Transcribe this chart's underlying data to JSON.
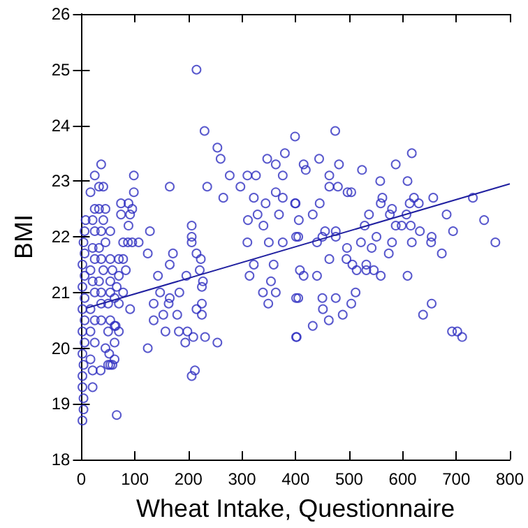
{
  "chart_data": {
    "type": "scatter",
    "xlabel": "Wheat Intake, Questionnaire",
    "ylabel": "BMI",
    "xlim": [
      0,
      800
    ],
    "xticks": [
      0,
      100,
      200,
      300,
      400,
      500,
      600,
      700,
      800
    ],
    "ylim": [
      18,
      26
    ],
    "yticks": [
      18,
      19,
      20,
      21,
      22,
      23,
      24,
      25,
      26
    ],
    "grid": false,
    "marker": "circle",
    "series": [
      {
        "color": "#3030c0",
        "x": [
          215,
          230,
          254,
          260,
          277,
          37,
          98,
          165,
          235,
          265,
          297,
          310,
          326,
          347,
          363,
          376,
          380,
          399,
          322,
          344,
          363,
          376,
          399,
          311,
          329,
          340,
          369,
          310,
          350,
          376,
          401,
          359,
          314,
          322,
          354,
          339,
          363,
          349,
          401,
          401,
          206,
          206,
          206,
          128,
          124,
          171,
          165,
          143,
          215,
          223,
          221,
          227,
          225,
          196,
          183,
          147,
          165,
          135,
          163,
          153,
          179,
          135,
          215,
          225,
          225,
          157,
          182,
          198,
          209,
          194,
          231,
          254,
          124,
          212,
          206,
          66,
          91,
          91,
          95,
          98,
          88,
          74,
          107,
          95,
          88,
          2,
          4,
          4,
          2,
          2,
          4,
          2,
          6,
          2,
          6,
          2,
          6,
          2,
          6,
          2,
          6,
          4,
          6,
          8,
          21,
          21,
          17,
          25,
          17,
          25,
          17,
          25,
          21,
          17,
          25,
          21,
          25,
          21,
          25,
          17,
          25,
          33,
          41,
          36,
          50,
          62,
          52,
          45,
          62,
          50,
          62,
          37,
          54,
          37,
          50,
          62,
          37,
          54,
          66,
          33,
          54,
          41,
          58,
          37,
          54,
          70,
          33,
          45,
          54,
          37,
          41,
          33,
          45,
          78,
          83,
          70,
          78,
          70,
          64,
          70,
          54,
          74,
          87,
          78,
          58,
          474,
          617,
          444,
          415,
          419,
          481,
          524,
          587,
          463,
          463,
          479,
          497,
          504,
          558,
          609,
          400,
          445,
          562,
          559,
          580,
          613,
          621,
          630,
          657,
          731,
          406,
          432,
          537,
          576,
          607,
          682,
          752,
          529,
          587,
          598,
          615,
          632,
          694,
          455,
          475,
          405,
          440,
          450,
          475,
          551,
          654,
          522,
          580,
          617,
          653,
          773,
          496,
          542,
          574,
          673,
          463,
          495,
          506,
          532,
          514,
          532,
          546,
          408,
          415,
          440,
          559,
          609,
          512,
          405,
          450,
          475,
          451,
          504,
          488,
          462,
          432,
          402,
          638,
          654,
          692,
          702,
          711
        ],
        "values": [
          25.0,
          23.9,
          23.6,
          23.4,
          23.1,
          23.3,
          23.1,
          22.9,
          22.9,
          22.7,
          22.9,
          23.1,
          23.1,
          23.4,
          23.3,
          23.1,
          23.5,
          23.8,
          22.7,
          22.6,
          22.8,
          22.7,
          22.6,
          22.3,
          22.4,
          22.2,
          22.4,
          21.9,
          21.9,
          21.9,
          22.0,
          21.5,
          21.3,
          21.5,
          21.2,
          21.0,
          21.0,
          20.8,
          20.9,
          20.2,
          22.2,
          22.0,
          21.9,
          22.1,
          21.7,
          21.7,
          21.5,
          21.3,
          21.7,
          21.6,
          21.4,
          21.2,
          21.1,
          21.3,
          21.0,
          21.0,
          20.9,
          20.8,
          20.8,
          20.6,
          20.6,
          20.5,
          20.7,
          20.8,
          20.6,
          20.3,
          20.3,
          20.3,
          20.2,
          20.1,
          20.2,
          20.1,
          20.0,
          19.6,
          19.5,
          18.8,
          20.7,
          22.4,
          22.5,
          22.8,
          22.6,
          22.4,
          21.9,
          21.9,
          22.2,
          18.7,
          18.9,
          19.1,
          19.3,
          19.5,
          19.7,
          19.9,
          20.1,
          20.3,
          20.5,
          20.7,
          20.9,
          21.1,
          21.3,
          21.5,
          21.7,
          21.9,
          22.1,
          22.3,
          19.3,
          19.6,
          19.8,
          20.1,
          20.3,
          20.5,
          20.7,
          21.0,
          21.2,
          21.4,
          21.6,
          21.8,
          22.1,
          22.3,
          22.5,
          22.8,
          23.1,
          22.9,
          22.9,
          19.6,
          19.7,
          19.8,
          19.9,
          20.0,
          20.1,
          20.3,
          20.4,
          20.5,
          20.5,
          20.8,
          20.8,
          20.9,
          21.0,
          21.0,
          21.1,
          21.2,
          21.2,
          21.4,
          21.4,
          21.6,
          21.6,
          21.6,
          21.8,
          21.9,
          22.1,
          22.1,
          22.3,
          22.5,
          22.5,
          21.6,
          21.4,
          21.3,
          21.0,
          20.8,
          20.4,
          20.3,
          19.7,
          22.6,
          21.9,
          21.9,
          19.7,
          23.9,
          23.5,
          23.4,
          23.3,
          23.2,
          23.3,
          23.2,
          23.3,
          23.1,
          22.9,
          22.9,
          22.8,
          22.8,
          23.0,
          23.0,
          22.6,
          22.6,
          22.7,
          22.6,
          22.5,
          22.6,
          22.7,
          22.6,
          22.7,
          22.7,
          22.3,
          22.4,
          22.4,
          22.4,
          22.4,
          22.4,
          22.3,
          22.2,
          22.2,
          22.2,
          22.2,
          22.1,
          22.1,
          22.1,
          22.1,
          22.0,
          21.9,
          22.0,
          22.0,
          22.0,
          22.0,
          21.9,
          21.9,
          21.9,
          21.9,
          21.9,
          21.8,
          21.8,
          21.7,
          21.7,
          21.6,
          21.6,
          21.5,
          21.5,
          21.4,
          21.4,
          21.4,
          21.4,
          21.3,
          21.3,
          21.3,
          21.3,
          21.0,
          20.9,
          20.9,
          20.9,
          20.7,
          20.8,
          20.6,
          20.5,
          20.4,
          20.2,
          20.6,
          20.8,
          20.3,
          20.3,
          20.2
        ]
      },
      {
        "type": "line",
        "color": "#2020a0",
        "marker": "none",
        "x": [
          10,
          800
        ],
        "values": [
          20.72,
          22.95
        ]
      }
    ]
  }
}
